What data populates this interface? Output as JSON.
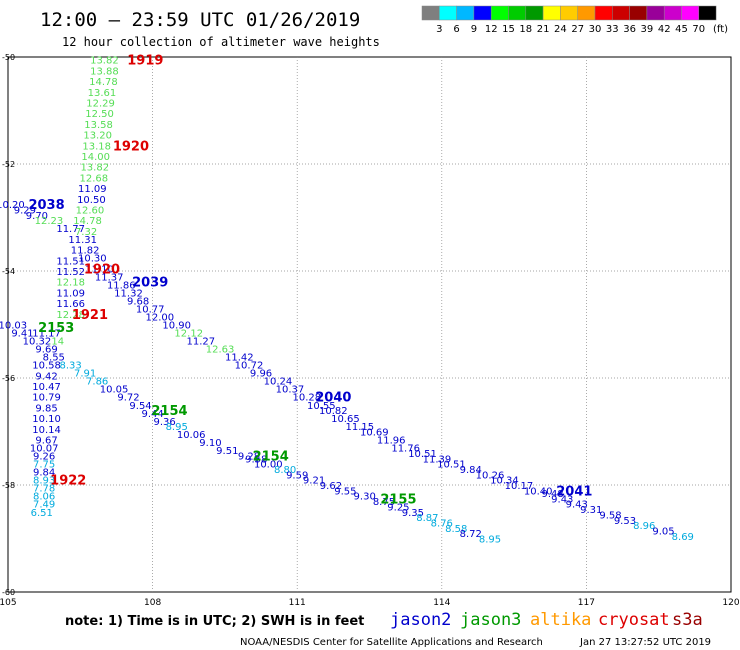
{
  "header": {
    "title": "12:00 – 23:59 UTC 01/26/2019",
    "subtitle": "12 hour collection of altimeter wave heights"
  },
  "colorbar": {
    "unit_label": "(ft)",
    "colors": [
      "#7f7f7f",
      "#00ffff",
      "#00b8ff",
      "#0000ff",
      "#00ff00",
      "#00cc00",
      "#009900",
      "#ffff00",
      "#ffcc00",
      "#ff9900",
      "#ff0000",
      "#cc0000",
      "#990000",
      "#990099",
      "#cc00cc",
      "#ff00ff",
      "#000000"
    ],
    "ticks": [
      "3",
      "6",
      "9",
      "12",
      "15",
      "18",
      "21",
      "24",
      "27",
      "30",
      "33",
      "36",
      "39",
      "42",
      "45",
      "70"
    ]
  },
  "footer": {
    "note": "note: 1) Time is in UTC; 2) SWH is in feet",
    "credit": "NOAA/NESDIS Center for Satellite Applications and Research",
    "timestamp": "Jan 27 13:27:52 UTC 2019"
  },
  "legend": [
    {
      "name": "jason2",
      "color": "#0000cc"
    },
    {
      "name": "jason3",
      "color": "#009900"
    },
    {
      "name": "altika",
      "color": "#ff9900"
    },
    {
      "name": "cryosat",
      "color": "#dd0000"
    },
    {
      "name": "s3a",
      "color": "#990000"
    }
  ],
  "chart_data": {
    "type": "scatter",
    "xlim": [
      105,
      120
    ],
    "ylim": [
      -60,
      -50
    ],
    "x_ticks": [
      "105",
      "108",
      "111",
      "114",
      "117",
      "120"
    ],
    "y_ticks": [
      "-50",
      "-52",
      "-54",
      "-56",
      "-58",
      "-60"
    ],
    "grid": true,
    "point_labels": [
      {
        "t": "13.82",
        "x": 107.0,
        "y": -50.05,
        "c": "#55dd55"
      },
      {
        "t": "13.88",
        "x": 107.0,
        "y": -50.25,
        "c": "#55dd55"
      },
      {
        "t": "14.78",
        "x": 106.98,
        "y": -50.45,
        "c": "#55dd55"
      },
      {
        "t": "13.61",
        "x": 106.95,
        "y": -50.65,
        "c": "#55dd55"
      },
      {
        "t": "12.29",
        "x": 106.92,
        "y": -50.85,
        "c": "#55dd55"
      },
      {
        "t": "12.50",
        "x": 106.9,
        "y": -51.05,
        "c": "#55dd55"
      },
      {
        "t": "13.58",
        "x": 106.88,
        "y": -51.25,
        "c": "#55dd55"
      },
      {
        "t": "13.20",
        "x": 106.86,
        "y": -51.45,
        "c": "#55dd55"
      },
      {
        "t": "13.18",
        "x": 106.84,
        "y": -51.65,
        "c": "#55dd55"
      },
      {
        "t": "14.00",
        "x": 106.82,
        "y": -51.85,
        "c": "#55dd55"
      },
      {
        "t": "13.82",
        "x": 106.8,
        "y": -52.05,
        "c": "#55dd55"
      },
      {
        "t": "12.68",
        "x": 106.78,
        "y": -52.25,
        "c": "#55dd55"
      },
      {
        "t": "11.09",
        "x": 106.75,
        "y": -52.45,
        "c": "#0000cc"
      },
      {
        "t": "10.50",
        "x": 106.73,
        "y": -52.65,
        "c": "#0000cc"
      },
      {
        "t": "12.60",
        "x": 106.7,
        "y": -52.85,
        "c": "#55dd55"
      },
      {
        "t": "14.78",
        "x": 106.65,
        "y": -53.05,
        "c": "#55dd55"
      },
      {
        "t": "11.77",
        "x": 106.3,
        "y": -53.2,
        "c": "#0000cc"
      },
      {
        "t": "7.32",
        "x": 106.62,
        "y": -53.25,
        "c": "#55dd55"
      },
      {
        "t": "11.31",
        "x": 106.55,
        "y": -53.4,
        "c": "#0000cc"
      },
      {
        "t": "11.82",
        "x": 106.6,
        "y": -53.6,
        "c": "#0000cc"
      },
      {
        "t": "10.30",
        "x": 106.75,
        "y": -53.75,
        "c": "#0000cc"
      },
      {
        "t": "11.51",
        "x": 106.3,
        "y": -53.8,
        "c": "#0000cc"
      },
      {
        "t": "11.10",
        "x": 106.9,
        "y": -53.95,
        "c": "#0000cc"
      },
      {
        "t": "11.52",
        "x": 106.3,
        "y": -54.0,
        "c": "#0000cc"
      },
      {
        "t": "11.37",
        "x": 107.1,
        "y": -54.1,
        "c": "#0000cc"
      },
      {
        "t": "11.86",
        "x": 107.35,
        "y": -54.25,
        "c": "#0000cc"
      },
      {
        "t": "12.18",
        "x": 106.3,
        "y": -54.2,
        "c": "#55dd55"
      },
      {
        "t": "11.32",
        "x": 107.5,
        "y": -54.4,
        "c": "#0000cc"
      },
      {
        "t": "11.09",
        "x": 106.3,
        "y": -54.4,
        "c": "#0000cc"
      },
      {
        "t": "9.68",
        "x": 107.7,
        "y": -54.55,
        "c": "#0000cc"
      },
      {
        "t": "11.66",
        "x": 106.3,
        "y": -54.6,
        "c": "#0000cc"
      },
      {
        "t": "10.77",
        "x": 107.95,
        "y": -54.7,
        "c": "#0000cc"
      },
      {
        "t": "12.28",
        "x": 106.3,
        "y": -54.8,
        "c": "#55dd55"
      },
      {
        "t": "12.00",
        "x": 108.15,
        "y": -54.85,
        "c": "#0000cc"
      },
      {
        "t": "10.90",
        "x": 108.5,
        "y": -55.0,
        "c": "#0000cc"
      },
      {
        "t": "10.03",
        "x": 105.1,
        "y": -55.0,
        "c": "#0000cc"
      },
      {
        "t": "12.12",
        "x": 108.75,
        "y": -55.15,
        "c": "#55dd55"
      },
      {
        "t": "9.41",
        "x": 105.3,
        "y": -55.15,
        "c": "#0000cc"
      },
      {
        "t": "11.17",
        "x": 105.8,
        "y": -55.15,
        "c": "#0000cc"
      },
      {
        "t": "11.27",
        "x": 109.0,
        "y": -55.3,
        "c": "#0000cc"
      },
      {
        "t": "10.32",
        "x": 105.6,
        "y": -55.3,
        "c": "#0000cc"
      },
      {
        "t": ".14",
        "x": 106.0,
        "y": -55.3,
        "c": "#55dd55"
      },
      {
        "t": "12.63",
        "x": 109.4,
        "y": -55.45,
        "c": "#55dd55"
      },
      {
        "t": "9.69",
        "x": 105.8,
        "y": -55.45,
        "c": "#0000cc"
      },
      {
        "t": "11.42",
        "x": 109.8,
        "y": -55.6,
        "c": "#0000cc"
      },
      {
        "t": "8.55",
        "x": 105.95,
        "y": -55.6,
        "c": "#0000cc"
      },
      {
        "t": "10.72",
        "x": 110.0,
        "y": -55.75,
        "c": "#0000cc"
      },
      {
        "t": "10.58",
        "x": 105.8,
        "y": -55.75,
        "c": "#0000cc"
      },
      {
        "t": "8.33",
        "x": 106.3,
        "y": -55.75,
        "c": "#00aadd"
      },
      {
        "t": "9.96",
        "x": 110.25,
        "y": -55.9,
        "c": "#0000cc"
      },
      {
        "t": "7.91",
        "x": 106.6,
        "y": -55.9,
        "c": "#00aadd"
      },
      {
        "t": "9.42",
        "x": 105.8,
        "y": -55.95,
        "c": "#0000cc"
      },
      {
        "t": "10.24",
        "x": 110.6,
        "y": -56.05,
        "c": "#0000cc"
      },
      {
        "t": "7.86",
        "x": 106.85,
        "y": -56.05,
        "c": "#00aadd"
      },
      {
        "t": "10.37",
        "x": 110.85,
        "y": -56.2,
        "c": "#0000cc"
      },
      {
        "t": "10.47",
        "x": 105.8,
        "y": -56.15,
        "c": "#0000cc"
      },
      {
        "t": "10.05",
        "x": 107.2,
        "y": -56.2,
        "c": "#0000cc"
      },
      {
        "t": "10.28",
        "x": 111.2,
        "y": -56.35,
        "c": "#0000cc"
      },
      {
        "t": "9.72",
        "x": 107.5,
        "y": -56.35,
        "c": "#0000cc"
      },
      {
        "t": "10.79",
        "x": 105.8,
        "y": -56.35,
        "c": "#0000cc"
      },
      {
        "t": "10.55",
        "x": 111.5,
        "y": -56.5,
        "c": "#0000cc"
      },
      {
        "t": "9.54",
        "x": 107.75,
        "y": -56.5,
        "c": "#0000cc"
      },
      {
        "t": "10.82",
        "x": 111.75,
        "y": -56.6,
        "c": "#0000cc"
      },
      {
        "t": "9.44",
        "x": 108.0,
        "y": -56.65,
        "c": "#0000cc"
      },
      {
        "t": "9.85",
        "x": 105.8,
        "y": -56.55,
        "c": "#0000cc"
      },
      {
        "t": "10.65",
        "x": 112.0,
        "y": -56.75,
        "c": "#0000cc"
      },
      {
        "t": "9.36",
        "x": 108.25,
        "y": -56.8,
        "c": "#0000cc"
      },
      {
        "t": "10.10",
        "x": 105.8,
        "y": -56.75,
        "c": "#0000cc"
      },
      {
        "t": "11.15",
        "x": 112.3,
        "y": -56.9,
        "c": "#0000cc"
      },
      {
        "t": "8.95",
        "x": 108.5,
        "y": -56.9,
        "c": "#00aadd"
      },
      {
        "t": "10.69",
        "x": 112.6,
        "y": -57.0,
        "c": "#0000cc"
      },
      {
        "t": "10.06",
        "x": 108.8,
        "y": -57.05,
        "c": "#0000cc"
      },
      {
        "t": "10.14",
        "x": 105.8,
        "y": -56.95,
        "c": "#0000cc"
      },
      {
        "t": "11.96",
        "x": 112.95,
        "y": -57.15,
        "c": "#0000cc"
      },
      {
        "t": "9.10",
        "x": 109.2,
        "y": -57.2,
        "c": "#0000cc"
      },
      {
        "t": "11.76",
        "x": 113.25,
        "y": -57.3,
        "c": "#0000cc"
      },
      {
        "t": "9.51",
        "x": 109.55,
        "y": -57.35,
        "c": "#0000cc"
      },
      {
        "t": "9.67",
        "x": 105.8,
        "y": -57.15,
        "c": "#0000cc"
      },
      {
        "t": "10.51",
        "x": 113.6,
        "y": -57.4,
        "c": "#0000cc"
      },
      {
        "t": "9.28",
        "x": 110.0,
        "y": -57.45,
        "c": "#0000cc"
      },
      {
        "t": "11.39",
        "x": 113.9,
        "y": -57.5,
        "c": "#0000cc"
      },
      {
        "t": "10.07",
        "x": 105.75,
        "y": -57.3,
        "c": "#0000cc"
      },
      {
        "t": "10.51",
        "x": 114.2,
        "y": -57.6,
        "c": "#0000cc"
      },
      {
        "t": "9.26",
        "x": 105.75,
        "y": -57.45,
        "c": "#0000cc"
      },
      {
        "t": "9.84",
        "x": 114.6,
        "y": -57.7,
        "c": "#0000cc"
      },
      {
        "t": "10.26",
        "x": 115.0,
        "y": -57.8,
        "c": "#0000cc"
      },
      {
        "t": "7.75",
        "x": 105.75,
        "y": -57.6,
        "c": "#00aadd"
      },
      {
        "t": "10.34",
        "x": 115.3,
        "y": -57.9,
        "c": "#0000cc"
      },
      {
        "t": "10.17",
        "x": 115.6,
        "y": -58.0,
        "c": "#0000cc"
      },
      {
        "t": "9.84",
        "x": 105.75,
        "y": -57.75,
        "c": "#0000cc"
      },
      {
        "t": "10.40",
        "x": 116.0,
        "y": -58.1,
        "c": "#0000cc"
      },
      {
        "t": "9.48",
        "x": 116.3,
        "y": -58.15,
        "c": "#0000cc"
      },
      {
        "t": "8.93",
        "x": 105.75,
        "y": -57.9,
        "c": "#00aadd"
      },
      {
        "t": "9.43",
        "x": 116.5,
        "y": -58.25,
        "c": "#0000cc"
      },
      {
        "t": "9.43",
        "x": 116.8,
        "y": -58.35,
        "c": "#0000cc"
      },
      {
        "t": "7.78",
        "x": 105.75,
        "y": -58.05,
        "c": "#00aadd"
      },
      {
        "t": "9.31",
        "x": 117.1,
        "y": -58.45,
        "c": "#0000cc"
      },
      {
        "t": "8.06",
        "x": 105.75,
        "y": -58.2,
        "c": "#00aadd"
      },
      {
        "t": "9.58",
        "x": 117.5,
        "y": -58.55,
        "c": "#0000cc"
      },
      {
        "t": "9.53",
        "x": 117.8,
        "y": -58.65,
        "c": "#0000cc"
      },
      {
        "t": "7.49",
        "x": 105.75,
        "y": -58.35,
        "c": "#00aadd"
      },
      {
        "t": "8.96",
        "x": 118.2,
        "y": -58.75,
        "c": "#00aadd"
      },
      {
        "t": "9.05",
        "x": 118.6,
        "y": -58.85,
        "c": "#0000cc"
      },
      {
        "t": "6.51",
        "x": 105.7,
        "y": -58.5,
        "c": "#00aadd"
      },
      {
        "t": "8.69",
        "x": 119.0,
        "y": -58.95,
        "c": "#00aadd"
      },
      {
        "t": "10.20",
        "x": 105.05,
        "y": -52.75,
        "c": "#0000cc"
      },
      {
        "t": "9.29",
        "x": 105.35,
        "y": -52.85,
        "c": "#0000cc"
      },
      {
        "t": "9.70",
        "x": 105.6,
        "y": -52.95,
        "c": "#0000cc"
      },
      {
        "t": "12.23",
        "x": 105.85,
        "y": -53.05,
        "c": "#55dd55"
      },
      {
        "t": "9.58",
        "x": 110.15,
        "y": -57.5,
        "c": "#0000cc"
      },
      {
        "t": "10.00",
        "x": 110.4,
        "y": -57.6,
        "c": "#0000cc"
      },
      {
        "t": "8.80",
        "x": 110.75,
        "y": -57.7,
        "c": "#00aadd"
      },
      {
        "t": "9.59",
        "x": 111.0,
        "y": -57.8,
        "c": "#0000cc"
      },
      {
        "t": "9.21",
        "x": 111.35,
        "y": -57.9,
        "c": "#0000cc"
      },
      {
        "t": "9.62",
        "x": 111.7,
        "y": -58.0,
        "c": "#0000cc"
      },
      {
        "t": "9.55",
        "x": 112.0,
        "y": -58.1,
        "c": "#0000cc"
      },
      {
        "t": "9.30",
        "x": 112.4,
        "y": -58.2,
        "c": "#0000cc"
      },
      {
        "t": "8.75",
        "x": 112.8,
        "y": -58.3,
        "c": "#0000cc"
      },
      {
        "t": "9.25",
        "x": 113.1,
        "y": -58.4,
        "c": "#0000cc"
      },
      {
        "t": "9.35",
        "x": 113.4,
        "y": -58.5,
        "c": "#0000cc"
      },
      {
        "t": "8.87",
        "x": 113.7,
        "y": -58.6,
        "c": "#00aadd"
      },
      {
        "t": "8.76",
        "x": 114.0,
        "y": -58.7,
        "c": "#00aadd"
      },
      {
        "t": "8.58",
        "x": 114.3,
        "y": -58.8,
        "c": "#00aadd"
      },
      {
        "t": "8.72",
        "x": 114.6,
        "y": -58.9,
        "c": "#0000cc"
      },
      {
        "t": "8.95",
        "x": 115.0,
        "y": -59.0,
        "c": "#00aadd"
      }
    ],
    "pass_labels": [
      {
        "t": "1919",
        "x": 107.85,
        "y": -50.05,
        "c": "#dd0000"
      },
      {
        "t": "1920",
        "x": 107.55,
        "y": -51.65,
        "c": "#dd0000"
      },
      {
        "t": "2038",
        "x": 105.8,
        "y": -52.75,
        "c": "#0000cc"
      },
      {
        "t": "1920",
        "x": 106.95,
        "y": -53.95,
        "c": "#dd0000"
      },
      {
        "t": "2039",
        "x": 107.95,
        "y": -54.2,
        "c": "#0000cc"
      },
      {
        "t": "1921",
        "x": 106.7,
        "y": -54.8,
        "c": "#dd0000"
      },
      {
        "t": "2153",
        "x": 106.0,
        "y": -55.05,
        "c": "#009900"
      },
      {
        "t": "2040",
        "x": 111.75,
        "y": -56.35,
        "c": "#0000cc"
      },
      {
        "t": "2154",
        "x": 108.35,
        "y": -56.6,
        "c": "#009900"
      },
      {
        "t": "2154",
        "x": 110.45,
        "y": -57.45,
        "c": "#009900"
      },
      {
        "t": "2041",
        "x": 116.75,
        "y": -58.1,
        "c": "#0000cc"
      },
      {
        "t": "2155",
        "x": 113.1,
        "y": -58.25,
        "c": "#009900"
      },
      {
        "t": "1922",
        "x": 106.25,
        "y": -57.9,
        "c": "#dd0000"
      }
    ]
  }
}
